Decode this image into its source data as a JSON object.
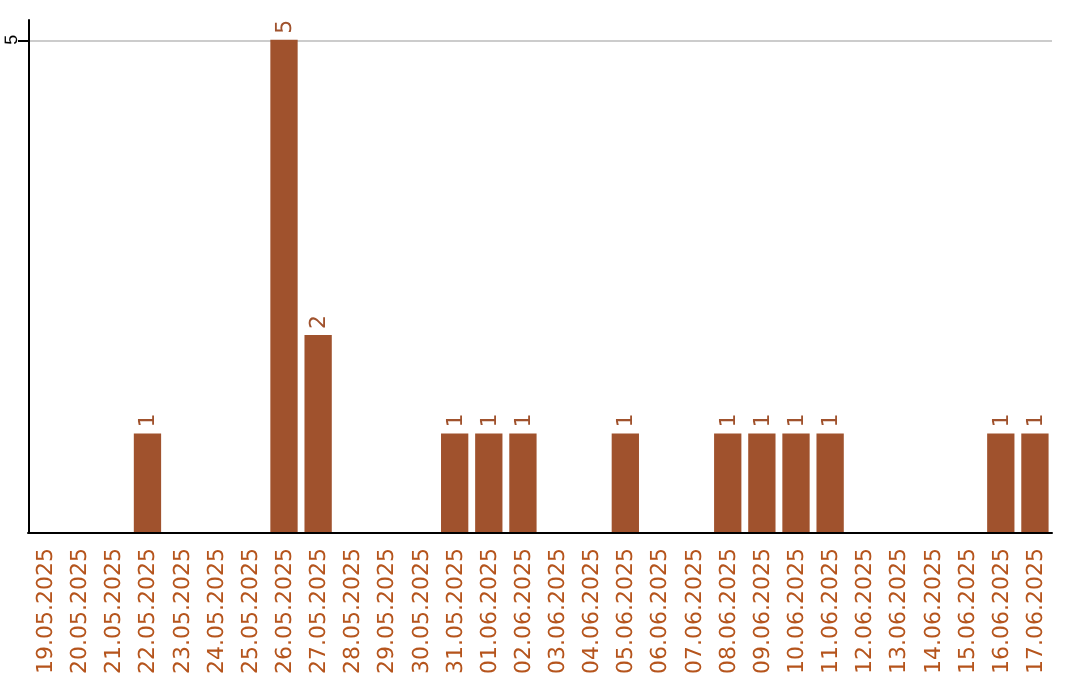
{
  "chart_data": {
    "type": "bar",
    "categories": [
      "19.05.2025",
      "20.05.2025",
      "21.05.2025",
      "22.05.2025",
      "23.05.2025",
      "24.05.2025",
      "25.05.2025",
      "26.05.2025",
      "27.05.2025",
      "28.05.2025",
      "29.05.2025",
      "30.05.2025",
      "31.05.2025",
      "01.06.2025",
      "02.06.2025",
      "03.06.2025",
      "04.06.2025",
      "05.06.2025",
      "06.06.2025",
      "07.06.2025",
      "08.06.2025",
      "09.06.2025",
      "10.06.2025",
      "11.06.2025",
      "12.06.2025",
      "13.06.2025",
      "14.06.2025",
      "15.06.2025",
      "16.06.2025",
      "17.06.2025"
    ],
    "values": [
      0,
      0,
      0,
      1,
      0,
      0,
      0,
      5,
      2,
      0,
      0,
      0,
      1,
      1,
      1,
      0,
      0,
      1,
      0,
      0,
      1,
      1,
      1,
      1,
      0,
      0,
      0,
      0,
      1,
      1
    ],
    "value_labels": [
      null,
      null,
      null,
      "1",
      null,
      null,
      null,
      "5",
      "2",
      null,
      null,
      null,
      "1",
      "1",
      "1",
      null,
      null,
      "1",
      null,
      null,
      "1",
      "1",
      "1",
      "1",
      null,
      null,
      null,
      null,
      "1",
      "1"
    ],
    "color": "#a0522d",
    "ylim": [
      0,
      5.2
    ],
    "yticks": [
      5
    ],
    "grid": "y"
  }
}
